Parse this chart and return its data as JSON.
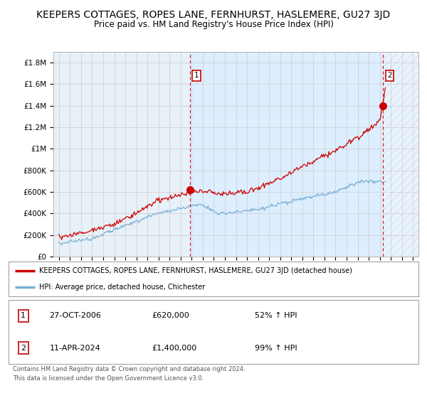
{
  "title": "KEEPERS COTTAGES, ROPES LANE, FERNHURST, HASLEMERE, GU27 3JD",
  "subtitle": "Price paid vs. HM Land Registry's House Price Index (HPI)",
  "title_fontsize": 10,
  "subtitle_fontsize": 8.5,
  "ylim": [
    0,
    1900000
  ],
  "yticks": [
    0,
    200000,
    400000,
    600000,
    800000,
    1000000,
    1200000,
    1400000,
    1600000,
    1800000
  ],
  "ytick_labels": [
    "£0",
    "£200K",
    "£400K",
    "£600K",
    "£800K",
    "£1M",
    "£1.2M",
    "£1.4M",
    "£1.6M",
    "£1.8M"
  ],
  "xlim_start": 1994.5,
  "xlim_end": 2027.5,
  "sale1_x": 2006.82,
  "sale1_y": 620000,
  "sale2_x": 2024.28,
  "sale2_y": 1400000,
  "red_color": "#cc0000",
  "blue_color": "#7ab0d4",
  "highlight_color": "#ddeeff",
  "hatch_start": 2024.28,
  "legend_label_red": "KEEPERS COTTAGES, ROPES LANE, FERNHURST, HASLEMERE, GU27 3JD (detached house)",
  "legend_label_blue": "HPI: Average price, detached house, Chichester",
  "table_row1": [
    "1",
    "27-OCT-2006",
    "£620,000",
    "52% ↑ HPI"
  ],
  "table_row2": [
    "2",
    "11-APR-2024",
    "£1,400,000",
    "99% ↑ HPI"
  ],
  "footer1": "Contains HM Land Registry data © Crown copyright and database right 2024.",
  "footer2": "This data is licensed under the Open Government Licence v3.0.",
  "bg_color": "#ffffff",
  "grid_color": "#cccccc",
  "panel_bg": "#e8f0f8"
}
